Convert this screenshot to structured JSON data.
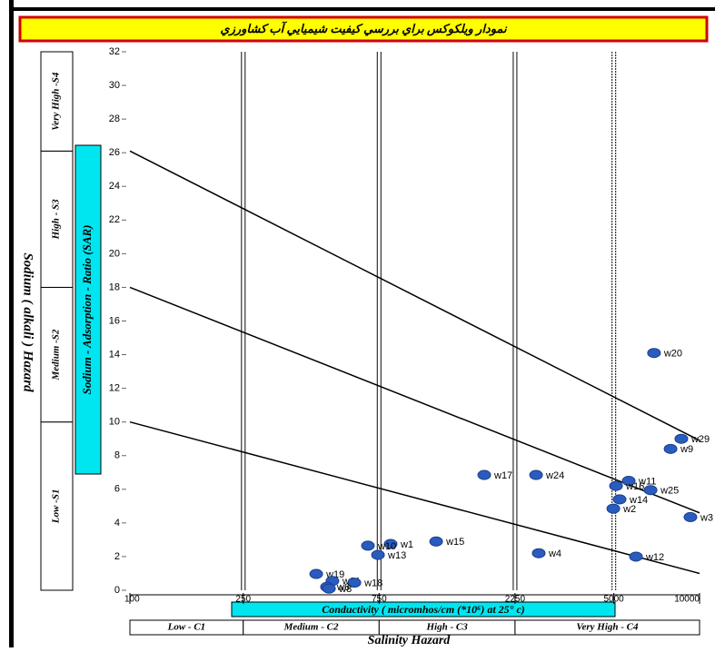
{
  "chart_data": {
    "type": "scatter",
    "title": "نمودار ويلكوكس براي بررسي كيفيت شيميايي آب كشاورزي",
    "y_title": "Sodium ( alkali ) Hazard",
    "y_label": "Sodium - Adsorption - Ratio (SAR)",
    "x_label": "Conductivity ( micromhos/cm (*10⁶) at 25° c)",
    "x_title": "Salinity  Hazard",
    "s_classes": [
      "Low -S1",
      "Medium -S2",
      "High - S3",
      "Very High -S4"
    ],
    "c_classes": [
      "Low - C1",
      "Medium - C2",
      "High - C3",
      "Very High - C4"
    ],
    "xlim": [
      100,
      10000
    ],
    "xticks": [
      100,
      250,
      750,
      2250,
      5000,
      10000
    ],
    "xscale": "log",
    "ylim": [
      0,
      32
    ],
    "yticks": [
      0,
      2,
      4,
      6,
      8,
      10,
      12,
      14,
      16,
      18,
      20,
      22,
      24,
      26,
      28,
      30,
      32
    ],
    "color": "#2a5cbf",
    "labels": [
      "w20",
      "w29",
      "w9",
      "w17",
      "w24",
      "w11",
      "w16",
      "w25",
      "w14",
      "w2",
      "w3",
      "w15",
      "w1",
      "w10",
      "w13",
      "w4",
      "w12",
      "w19",
      "w21",
      "w18",
      "w6",
      "w8"
    ],
    "x": [
      6920,
      8630,
      7910,
      1754,
      2667,
      5640,
      5090,
      6730,
      5240,
      4980,
      9290,
      1189,
      823,
      685,
      743,
      2725,
      5980,
      451,
      514,
      614,
      492,
      500
    ],
    "values": [
      14.1,
      9.0,
      8.4,
      6.85,
      6.85,
      6.5,
      6.2,
      5.95,
      5.4,
      4.85,
      4.35,
      2.9,
      2.75,
      2.65,
      2.1,
      2.2,
      2.0,
      0.97,
      0.55,
      0.45,
      0.2,
      0.1
    ],
    "lines": [
      {
        "x": [
          100,
          10000
        ],
        "y": [
          10,
          1
        ]
      },
      {
        "x": [
          100,
          10000
        ],
        "y": [
          18,
          4.6
        ]
      },
      {
        "x": [
          100,
          10000
        ],
        "y": [
          26.1,
          8.9
        ]
      }
    ]
  }
}
